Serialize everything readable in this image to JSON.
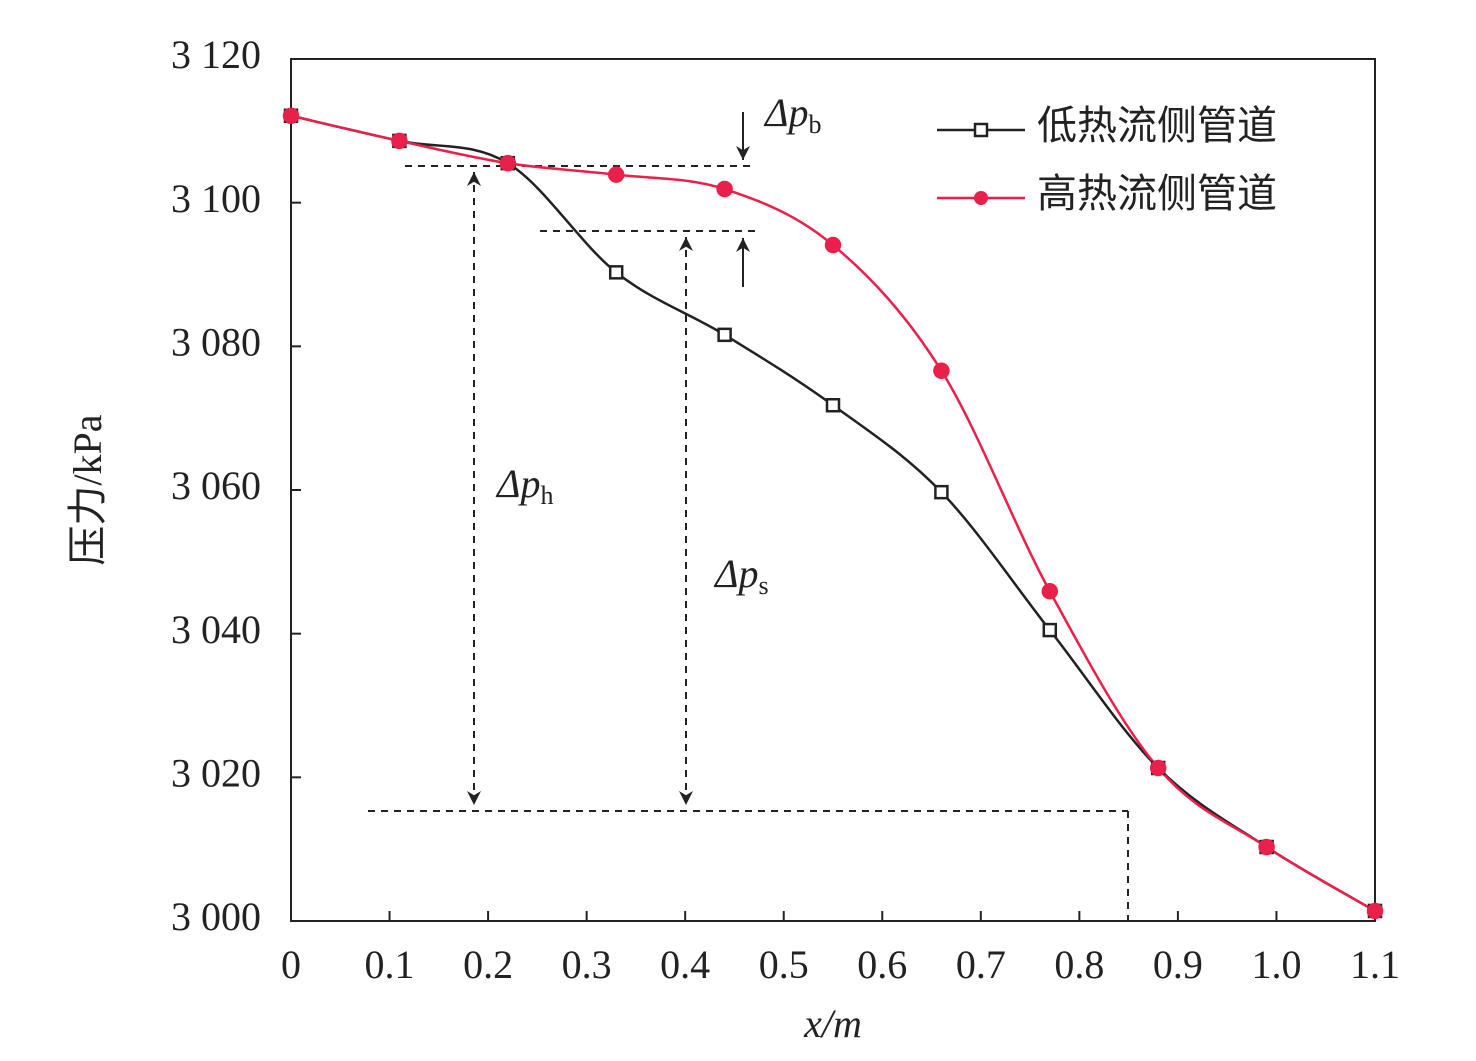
{
  "chart_data": {
    "type": "line",
    "xlabel": "x/m",
    "ylabel": "压力/kPa",
    "x": [
      0,
      0.11,
      0.22,
      0.33,
      0.44,
      0.55,
      0.66,
      0.77,
      0.88,
      0.99,
      1.1
    ],
    "series": [
      {
        "name": "低热流侧管道",
        "color": "#222222",
        "marker": "square",
        "values": [
          3112.1,
          3108.6,
          3105.5,
          3090.3,
          3081.6,
          3071.8,
          3059.7,
          3040.5,
          3021.3,
          3010.3,
          3001.4
        ]
      },
      {
        "name": "高热流侧管道",
        "color": "#e8204a",
        "marker": "circle",
        "values": [
          3112.1,
          3108.6,
          3105.5,
          3103.9,
          3101.9,
          3094.1,
          3076.6,
          3045.9,
          3021.3,
          3010.3,
          3001.4
        ]
      }
    ],
    "xlim": [
      0,
      1.1
    ],
    "ylim": [
      3000,
      3120
    ],
    "xticks": [
      0,
      0.1,
      0.2,
      0.3,
      0.4,
      0.5,
      0.6,
      0.7,
      0.8,
      0.9,
      {
        "value": 1.0,
        "label": "1.0"
      },
      1.1
    ],
    "yticks": [
      {
        "value": 3000,
        "label": "3 000"
      },
      {
        "value": 3020,
        "label": "3 020"
      },
      {
        "value": 3040,
        "label": "3 040"
      },
      {
        "value": 3060,
        "label": "3 060"
      },
      {
        "value": 3080,
        "label": "3 080"
      },
      {
        "value": 3100,
        "label": "3 100"
      },
      {
        "value": 3120,
        "label": "3 120"
      }
    ],
    "legend": "upper right",
    "annotations": [
      {
        "text": "Δp",
        "sub": "b"
      },
      {
        "text": "Δp",
        "sub": "h"
      },
      {
        "text": "Δp",
        "sub": "s"
      }
    ]
  }
}
